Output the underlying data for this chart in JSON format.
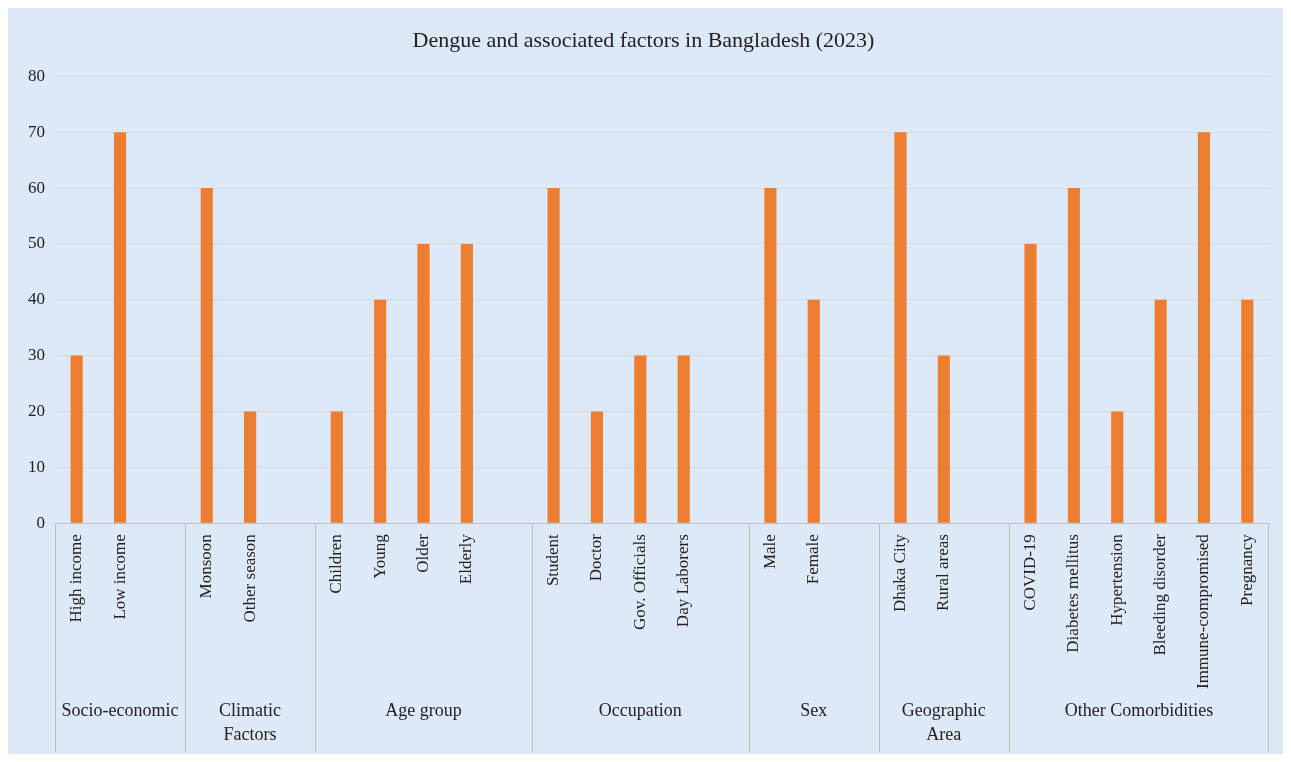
{
  "chart_data": {
    "type": "bar",
    "title": "Dengue and associated factors in Bangladesh (2023)",
    "categories": [
      "High income",
      "Low income",
      null,
      "Monsoon",
      "Other season",
      null,
      "Children",
      "Young",
      "Older",
      "Elderly",
      null,
      "Student",
      "Doctor",
      "Gov. Officials",
      "Day Laborers",
      null,
      "Male",
      "Female",
      null,
      "Dhaka City",
      "Rural areas",
      null,
      "COVID-19",
      "Diabetes mellitus",
      "Hypertension",
      "Bleeding disorder",
      "Immune-compromised",
      "Pregnancy"
    ],
    "values": [
      30,
      70,
      null,
      60,
      20,
      null,
      20,
      40,
      50,
      50,
      null,
      60,
      20,
      30,
      30,
      null,
      60,
      40,
      null,
      70,
      30,
      null,
      50,
      60,
      20,
      40,
      70,
      40
    ],
    "color": "#ed7d31",
    "ylim": [
      0,
      80
    ],
    "yticks": [
      0,
      10,
      20,
      30,
      40,
      50,
      60,
      70,
      80
    ],
    "grid": "y",
    "legend": false,
    "annotations": [
      "Socio-economic",
      "Climatic Factors",
      "Age group",
      "Occupation",
      "Sex",
      "Geographic Area",
      "Other Comorbidities"
    ]
  }
}
